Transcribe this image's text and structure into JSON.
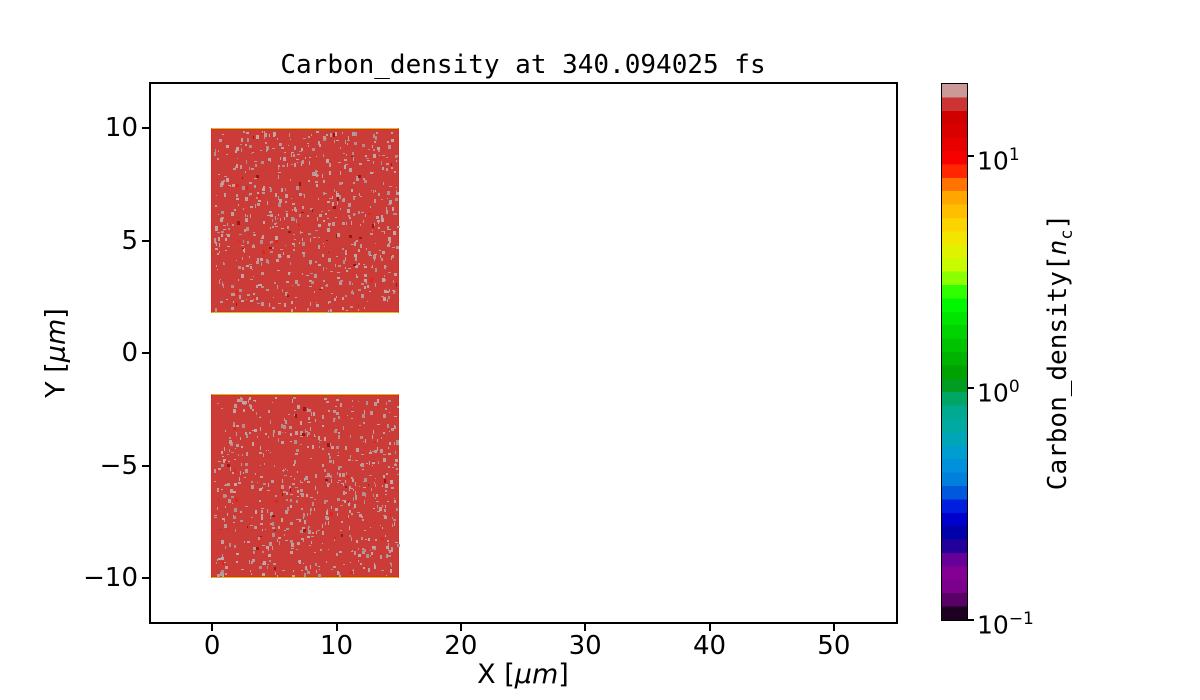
{
  "chart_data": {
    "type": "heatmap",
    "title": "Carbon_density at 340.094025 fs",
    "time_fs": 340.094025,
    "xlabel": "X [μm]",
    "xlabel_parts": {
      "prefix": "X [",
      "italic": "μm",
      "suffix": "]"
    },
    "ylabel": "Y [μm]",
    "ylabel_parts": {
      "prefix": "Y [",
      "italic": "μm",
      "suffix": "]"
    },
    "xlim": [
      -5,
      55
    ],
    "ylim": [
      -12,
      12
    ],
    "xticks": [
      0,
      10,
      20,
      30,
      40,
      50
    ],
    "yticks": [
      10,
      5,
      0,
      -5,
      -10
    ],
    "grid": false,
    "background": "#ffffff",
    "regions": [
      {
        "name": "upper-target-block",
        "x": [
          0,
          15.1
        ],
        "y": [
          1.8,
          10.0
        ],
        "approx_density_nc": 17,
        "fill": "#cb3b38",
        "speckle_colors": [
          "#c09f9e",
          "#b99897",
          "#c7a4a4",
          "#b18f8e"
        ],
        "speckle_count": 640,
        "accent_colors": [
          "#9f1511",
          "#e3241a"
        ],
        "accent_count": 45,
        "edge_outer": "#d2c125",
        "edge_inner": "#df2d1c",
        "seed": 12345
      },
      {
        "name": "lower-target-block",
        "x": [
          0,
          15.1
        ],
        "y": [
          -10.0,
          -1.8
        ],
        "approx_density_nc": 17,
        "fill": "#cb3b38",
        "speckle_colors": [
          "#c09f9e",
          "#b99897",
          "#c7a4a4",
          "#b18f8e"
        ],
        "speckle_count": 640,
        "accent_colors": [
          "#9f1511",
          "#e3241a"
        ],
        "accent_count": 45,
        "edge_outer": "#d2c125",
        "edge_inner": "#df2d1c",
        "seed": 67890
      }
    ],
    "colorbar": {
      "label": "Carbon_density[n_c]",
      "label_parts": {
        "prefix": "Carbon_density[",
        "italic": "n",
        "sub": "c",
        "suffix": "]"
      },
      "scale": "log",
      "log10_range": [
        -1,
        1.31
      ],
      "num_bands": 40,
      "ticks": [
        {
          "base": "10",
          "exp": "1",
          "value": 10
        },
        {
          "base": "10",
          "exp": "0",
          "value": 1
        },
        {
          "base": "10",
          "exp": "−1",
          "value": 0.1
        }
      ],
      "colormap_name": "nipy_spectral",
      "colormap_stops": [
        [
          0.0,
          "#000000"
        ],
        [
          0.05,
          "#770088"
        ],
        [
          0.1,
          "#880099"
        ],
        [
          0.15,
          "#000099"
        ],
        [
          0.2,
          "#0000dd"
        ],
        [
          0.25,
          "#0077dd"
        ],
        [
          0.3,
          "#0099dd"
        ],
        [
          0.35,
          "#00aaaa"
        ],
        [
          0.4,
          "#00aa88"
        ],
        [
          0.45,
          "#009900"
        ],
        [
          0.5,
          "#00bb00"
        ],
        [
          0.55,
          "#00dd00"
        ],
        [
          0.6,
          "#00ff00"
        ],
        [
          0.65,
          "#bbff00"
        ],
        [
          0.7,
          "#eeee00"
        ],
        [
          0.75,
          "#ffcc00"
        ],
        [
          0.8,
          "#ff9900"
        ],
        [
          0.85,
          "#ff0000"
        ],
        [
          0.9,
          "#dd0000"
        ],
        [
          0.95,
          "#cc0000"
        ],
        [
          1.0,
          "#cccccc"
        ]
      ]
    }
  }
}
